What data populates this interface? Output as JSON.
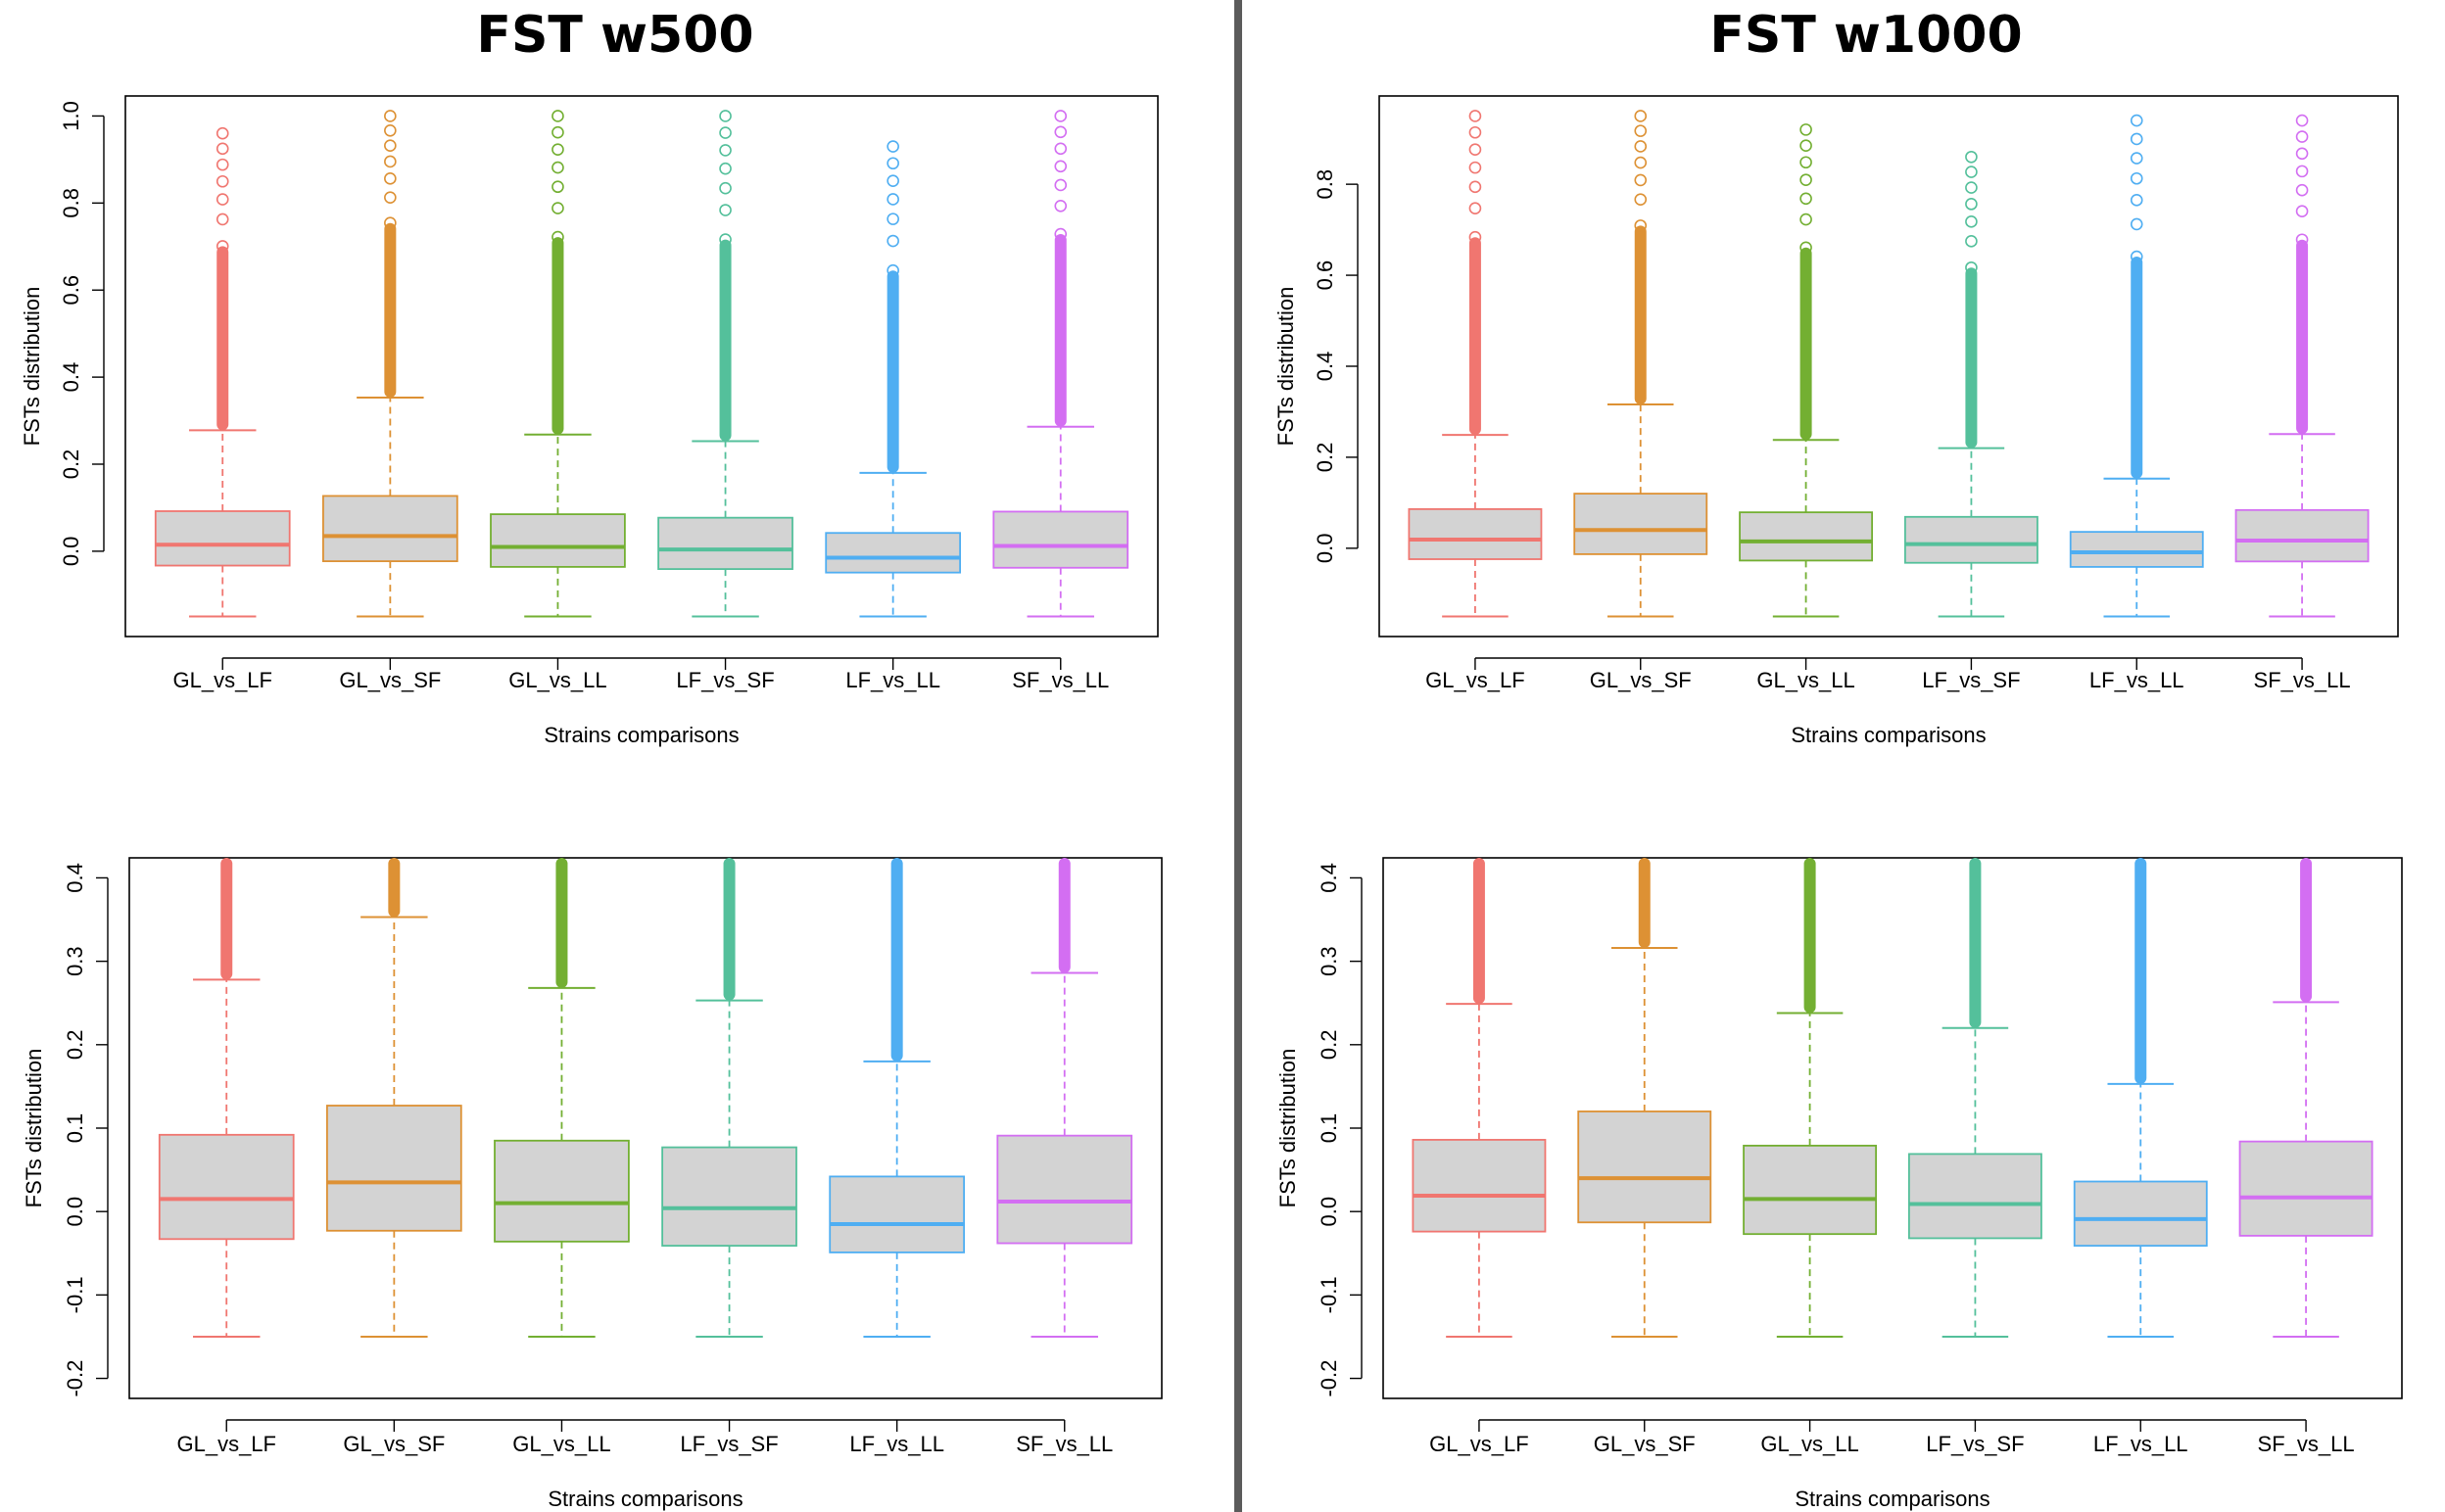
{
  "titles": {
    "left": "FST w500",
    "right": "FST w1000"
  },
  "series_colors": {
    "GL_vs_LF": "#F07670",
    "GL_vs_SF": "#DD9134",
    "GL_vs_LL": "#73AF32",
    "LF_vs_SF": "#54C09B",
    "LF_vs_LL": "#4FAEF2",
    "SF_vs_LL": "#D36EF2"
  },
  "box_fill": "#D3D3D3",
  "chart_data": [
    {
      "type": "box",
      "group": "FST w500",
      "xlabel": "Strains comparisons",
      "ylabel": "FSTs distribution",
      "ylim": [
        -0.15,
        1.0
      ],
      "yticks": [
        "0.0",
        "0.2",
        "0.4",
        "0.6",
        "0.8",
        "1.0"
      ],
      "categories": [
        "GL_vs_LF",
        "GL_vs_SF",
        "GL_vs_LL",
        "LF_vs_SF",
        "LF_vs_LL",
        "SF_vs_LL"
      ],
      "boxes": [
        {
          "name": "GL_vs_LF",
          "min": -0.15,
          "q1": -0.033,
          "median": 0.015,
          "q3": 0.092,
          "whisker_high": 0.278,
          "outlier_max": 0.96
        },
        {
          "name": "GL_vs_SF",
          "min": -0.15,
          "q1": -0.023,
          "median": 0.035,
          "q3": 0.127,
          "whisker_high": 0.353,
          "outlier_max": 1.0
        },
        {
          "name": "GL_vs_LL",
          "min": -0.15,
          "q1": -0.036,
          "median": 0.01,
          "q3": 0.085,
          "whisker_high": 0.268,
          "outlier_max": 1.0
        },
        {
          "name": "LF_vs_SF",
          "min": -0.15,
          "q1": -0.041,
          "median": 0.004,
          "q3": 0.077,
          "whisker_high": 0.253,
          "outlier_max": 1.0
        },
        {
          "name": "LF_vs_LL",
          "min": -0.15,
          "q1": -0.049,
          "median": -0.015,
          "q3": 0.042,
          "whisker_high": 0.18,
          "outlier_max": 0.93
        },
        {
          "name": "SF_vs_LL",
          "min": -0.15,
          "q1": -0.038,
          "median": 0.012,
          "q3": 0.091,
          "whisker_high": 0.286,
          "outlier_max": 1.0
        }
      ]
    },
    {
      "type": "box",
      "group": "FST w1000",
      "xlabel": "Strains comparisons",
      "ylabel": "FSTs distribution",
      "ylim": [
        -0.15,
        0.95
      ],
      "yticks": [
        "0.0",
        "0.2",
        "0.4",
        "0.6",
        "0.8"
      ],
      "categories": [
        "GL_vs_LF",
        "GL_vs_SF",
        "GL_vs_LL",
        "LF_vs_SF",
        "LF_vs_LL",
        "SF_vs_LL"
      ],
      "boxes": [
        {
          "name": "GL_vs_LF",
          "min": -0.15,
          "q1": -0.024,
          "median": 0.019,
          "q3": 0.086,
          "whisker_high": 0.249,
          "outlier_max": 0.95
        },
        {
          "name": "GL_vs_SF",
          "min": -0.15,
          "q1": -0.013,
          "median": 0.04,
          "q3": 0.12,
          "whisker_high": 0.316,
          "outlier_max": 0.95
        },
        {
          "name": "GL_vs_LL",
          "min": -0.15,
          "q1": -0.027,
          "median": 0.015,
          "q3": 0.079,
          "whisker_high": 0.238,
          "outlier_max": 0.92
        },
        {
          "name": "LF_vs_SF",
          "min": -0.15,
          "q1": -0.032,
          "median": 0.009,
          "q3": 0.069,
          "whisker_high": 0.22,
          "outlier_max": 0.86
        },
        {
          "name": "LF_vs_LL",
          "min": -0.15,
          "q1": -0.041,
          "median": -0.009,
          "q3": 0.036,
          "whisker_high": 0.153,
          "outlier_max": 0.94
        },
        {
          "name": "SF_vs_LL",
          "min": -0.15,
          "q1": -0.029,
          "median": 0.017,
          "q3": 0.084,
          "whisker_high": 0.251,
          "outlier_max": 0.94
        }
      ]
    },
    {
      "type": "box",
      "group": "FST w500",
      "xlabel": "Strains comparisons",
      "ylabel": "FSTs distribution",
      "ylim": [
        -0.2,
        0.4
      ],
      "yticks": [
        "-0.2",
        "-0.1",
        "0.0",
        "0.1",
        "0.2",
        "0.3",
        "0.4"
      ],
      "categories": [
        "GL_vs_LF",
        "GL_vs_SF",
        "GL_vs_LL",
        "LF_vs_SF",
        "LF_vs_LL",
        "SF_vs_LL"
      ],
      "boxes": [
        {
          "name": "GL_vs_LF",
          "min": -0.15,
          "q1": -0.033,
          "median": 0.015,
          "q3": 0.092,
          "whisker_high": 0.278,
          "outlier_max": 0.96
        },
        {
          "name": "GL_vs_SF",
          "min": -0.15,
          "q1": -0.023,
          "median": 0.035,
          "q3": 0.127,
          "whisker_high": 0.353,
          "outlier_max": 1.0
        },
        {
          "name": "GL_vs_LL",
          "min": -0.15,
          "q1": -0.036,
          "median": 0.01,
          "q3": 0.085,
          "whisker_high": 0.268,
          "outlier_max": 1.0
        },
        {
          "name": "LF_vs_SF",
          "min": -0.15,
          "q1": -0.041,
          "median": 0.004,
          "q3": 0.077,
          "whisker_high": 0.253,
          "outlier_max": 1.0
        },
        {
          "name": "LF_vs_LL",
          "min": -0.15,
          "q1": -0.049,
          "median": -0.015,
          "q3": 0.042,
          "whisker_high": 0.18,
          "outlier_max": 0.93
        },
        {
          "name": "SF_vs_LL",
          "min": -0.15,
          "q1": -0.038,
          "median": 0.012,
          "q3": 0.091,
          "whisker_high": 0.286,
          "outlier_max": 1.0
        }
      ]
    },
    {
      "type": "box",
      "group": "FST w1000",
      "xlabel": "Strains comparisons",
      "ylabel": "FSTs distribution",
      "ylim": [
        -0.2,
        0.4
      ],
      "yticks": [
        "-0.2",
        "-0.1",
        "0.0",
        "0.1",
        "0.2",
        "0.3",
        "0.4"
      ],
      "categories": [
        "GL_vs_LF",
        "GL_vs_SF",
        "GL_vs_LL",
        "LF_vs_SF",
        "LF_vs_LL",
        "SF_vs_LL"
      ],
      "boxes": [
        {
          "name": "GL_vs_LF",
          "min": -0.15,
          "q1": -0.024,
          "median": 0.019,
          "q3": 0.086,
          "whisker_high": 0.249,
          "outlier_max": 0.95
        },
        {
          "name": "GL_vs_SF",
          "min": -0.15,
          "q1": -0.013,
          "median": 0.04,
          "q3": 0.12,
          "whisker_high": 0.316,
          "outlier_max": 0.95
        },
        {
          "name": "GL_vs_LL",
          "min": -0.15,
          "q1": -0.027,
          "median": 0.015,
          "q3": 0.079,
          "whisker_high": 0.238,
          "outlier_max": 0.92
        },
        {
          "name": "LF_vs_SF",
          "min": -0.15,
          "q1": -0.032,
          "median": 0.009,
          "q3": 0.069,
          "whisker_high": 0.22,
          "outlier_max": 0.86
        },
        {
          "name": "LF_vs_LL",
          "min": -0.15,
          "q1": -0.041,
          "median": -0.009,
          "q3": 0.036,
          "whisker_high": 0.153,
          "outlier_max": 0.94
        },
        {
          "name": "SF_vs_LL",
          "min": -0.15,
          "q1": -0.029,
          "median": 0.017,
          "q3": 0.084,
          "whisker_high": 0.251,
          "outlier_max": 0.94
        }
      ]
    }
  ]
}
